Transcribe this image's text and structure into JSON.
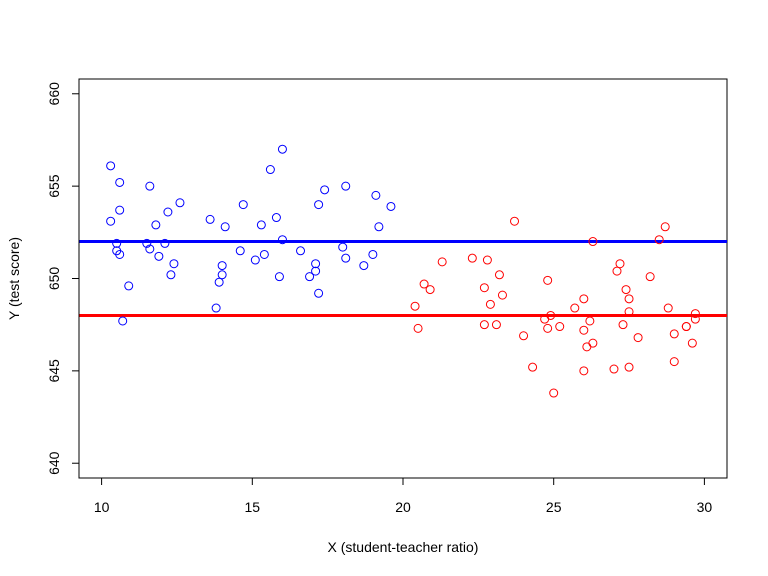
{
  "chart_data": {
    "type": "scatter",
    "title": "",
    "xlabel": "X (student-teacher ratio)",
    "ylabel": "Y (test score)",
    "xlim": [
      9.25,
      30.75
    ],
    "ylim": [
      639.2,
      660.8
    ],
    "xticks": [
      10,
      15,
      20,
      25,
      30
    ],
    "yticks": [
      640,
      645,
      650,
      655,
      660
    ],
    "grid": false,
    "legend": "none",
    "series": [
      {
        "color": "#0000FF",
        "marker": "open-circle",
        "points": [
          [
            10.3,
            656.1
          ],
          [
            10.3,
            653.1
          ],
          [
            10.5,
            651.5
          ],
          [
            10.5,
            651.9
          ],
          [
            10.6,
            651.3
          ],
          [
            10.6,
            655.2
          ],
          [
            10.6,
            653.7
          ],
          [
            10.7,
            647.7
          ],
          [
            10.9,
            649.6
          ],
          [
            11.5,
            651.9
          ],
          [
            11.6,
            655.0
          ],
          [
            11.6,
            651.6
          ],
          [
            11.8,
            652.9
          ],
          [
            11.9,
            651.2
          ],
          [
            12.1,
            651.9
          ],
          [
            12.2,
            653.6
          ],
          [
            12.3,
            650.2
          ],
          [
            12.4,
            650.8
          ],
          [
            12.6,
            654.1
          ],
          [
            13.6,
            653.2
          ],
          [
            13.8,
            648.4
          ],
          [
            13.9,
            649.8
          ],
          [
            14.0,
            650.2
          ],
          [
            14.0,
            650.7
          ],
          [
            14.1,
            652.8
          ],
          [
            14.6,
            651.5
          ],
          [
            14.7,
            654.0
          ],
          [
            15.1,
            651.0
          ],
          [
            15.3,
            652.9
          ],
          [
            15.4,
            651.3
          ],
          [
            15.6,
            655.9
          ],
          [
            15.8,
            653.3
          ],
          [
            15.9,
            650.1
          ],
          [
            16.0,
            657.0
          ],
          [
            16.0,
            652.1
          ],
          [
            16.6,
            651.5
          ],
          [
            16.9,
            650.1
          ],
          [
            17.1,
            650.4
          ],
          [
            17.1,
            650.8
          ],
          [
            17.2,
            649.2
          ],
          [
            17.2,
            654.0
          ],
          [
            17.4,
            654.8
          ],
          [
            18.0,
            651.7
          ],
          [
            18.1,
            651.1
          ],
          [
            18.1,
            655.0
          ],
          [
            18.7,
            650.7
          ],
          [
            19.0,
            651.3
          ],
          [
            19.1,
            654.5
          ],
          [
            19.2,
            652.8
          ],
          [
            19.6,
            653.9
          ]
        ]
      },
      {
        "color": "#FF0000",
        "marker": "open-circle",
        "points": [
          [
            20.4,
            648.5
          ],
          [
            20.5,
            647.3
          ],
          [
            20.7,
            649.7
          ],
          [
            20.9,
            649.4
          ],
          [
            21.3,
            650.9
          ],
          [
            22.3,
            651.1
          ],
          [
            22.7,
            647.5
          ],
          [
            22.7,
            649.5
          ],
          [
            22.8,
            651.0
          ],
          [
            22.9,
            648.6
          ],
          [
            23.1,
            647.5
          ],
          [
            23.2,
            650.2
          ],
          [
            23.3,
            649.1
          ],
          [
            23.7,
            653.1
          ],
          [
            24.0,
            646.9
          ],
          [
            24.3,
            645.2
          ],
          [
            24.7,
            647.8
          ],
          [
            24.8,
            649.9
          ],
          [
            24.8,
            647.3
          ],
          [
            24.9,
            648.0
          ],
          [
            25.0,
            643.8
          ],
          [
            25.2,
            647.4
          ],
          [
            25.7,
            648.4
          ],
          [
            26.0,
            648.9
          ],
          [
            26.0,
            647.2
          ],
          [
            26.0,
            645.0
          ],
          [
            26.1,
            646.3
          ],
          [
            26.2,
            647.7
          ],
          [
            26.3,
            652.0
          ],
          [
            26.3,
            646.5
          ],
          [
            27.0,
            645.1
          ],
          [
            27.1,
            650.4
          ],
          [
            27.2,
            650.8
          ],
          [
            27.3,
            647.5
          ],
          [
            27.4,
            649.4
          ],
          [
            27.5,
            648.2
          ],
          [
            27.5,
            648.9
          ],
          [
            27.5,
            645.2
          ],
          [
            27.8,
            646.8
          ],
          [
            28.2,
            650.1
          ],
          [
            28.5,
            652.1
          ],
          [
            28.7,
            652.8
          ],
          [
            28.8,
            648.4
          ],
          [
            29.0,
            647.0
          ],
          [
            29.0,
            645.5
          ],
          [
            29.4,
            647.4
          ],
          [
            29.4,
            647.4
          ],
          [
            29.6,
            646.5
          ],
          [
            29.7,
            648.1
          ],
          [
            29.7,
            647.8
          ]
        ]
      }
    ],
    "hlines": [
      {
        "y": 652.0,
        "color": "#0000FF"
      },
      {
        "y": 648.0,
        "color": "#FF0000"
      }
    ]
  }
}
